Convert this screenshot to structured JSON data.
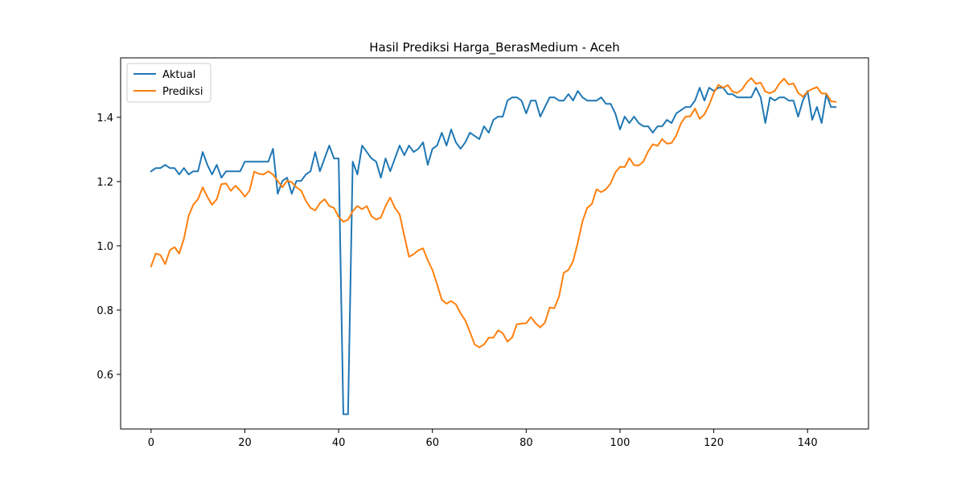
{
  "chart_data": {
    "type": "line",
    "title": "Hasil Prediksi Harga_BerasMedium - Aceh",
    "xlabel": "",
    "ylabel": "",
    "xlim": [
      -6.5,
      153
    ],
    "ylim": [
      0.43,
      1.585
    ],
    "xticks": [
      0,
      20,
      40,
      60,
      80,
      100,
      120,
      140
    ],
    "yticks": [
      0.6,
      0.8,
      1.0,
      1.2,
      1.4
    ],
    "ytick_labels": [
      "0.6",
      "0.8",
      "1.0",
      "1.2",
      "1.4"
    ],
    "legend_position": "upper-left",
    "grid": false,
    "series": [
      {
        "name": "Aktual",
        "color": "#1f77b4",
        "values": [
          1.232,
          1.242,
          1.242,
          1.252,
          1.242,
          1.242,
          1.222,
          1.242,
          1.222,
          1.232,
          1.232,
          1.292,
          1.252,
          1.222,
          1.252,
          1.212,
          1.232,
          1.232,
          1.232,
          1.232,
          1.262,
          1.262,
          1.262,
          1.262,
          1.262,
          1.262,
          1.302,
          1.162,
          1.202,
          1.212,
          1.162,
          1.202,
          1.202,
          1.222,
          1.232,
          1.292,
          1.232,
          1.272,
          1.312,
          1.272,
          1.272,
          0.476,
          0.476,
          1.262,
          1.222,
          1.312,
          1.292,
          1.272,
          1.262,
          1.212,
          1.272,
          1.232,
          1.272,
          1.312,
          1.282,
          1.312,
          1.292,
          1.302,
          1.322,
          1.252,
          1.302,
          1.312,
          1.352,
          1.312,
          1.362,
          1.322,
          1.302,
          1.322,
          1.352,
          1.342,
          1.332,
          1.372,
          1.352,
          1.392,
          1.402,
          1.402,
          1.452,
          1.462,
          1.462,
          1.452,
          1.412,
          1.452,
          1.452,
          1.402,
          1.432,
          1.462,
          1.462,
          1.452,
          1.452,
          1.472,
          1.452,
          1.482,
          1.462,
          1.452,
          1.452,
          1.452,
          1.462,
          1.442,
          1.442,
          1.412,
          1.362,
          1.402,
          1.382,
          1.402,
          1.382,
          1.372,
          1.372,
          1.352,
          1.372,
          1.372,
          1.392,
          1.382,
          1.412,
          1.422,
          1.432,
          1.432,
          1.452,
          1.492,
          1.452,
          1.492,
          1.482,
          1.492,
          1.492,
          1.472,
          1.472,
          1.462,
          1.462,
          1.462,
          1.462,
          1.492,
          1.462,
          1.382,
          1.462,
          1.452,
          1.462,
          1.462,
          1.452,
          1.452,
          1.402,
          1.452,
          1.482,
          1.392,
          1.432,
          1.382,
          1.472,
          1.432,
          1.432
        ]
      },
      {
        "name": "Prediksi",
        "color": "#ff7f0e",
        "values": [
          0.936,
          0.976,
          0.971,
          0.943,
          0.986,
          0.996,
          0.976,
          1.022,
          1.093,
          1.128,
          1.145,
          1.182,
          1.152,
          1.128,
          1.145,
          1.192,
          1.194,
          1.171,
          1.187,
          1.172,
          1.153,
          1.172,
          1.231,
          1.224,
          1.222,
          1.232,
          1.222,
          1.202,
          1.182,
          1.203,
          1.198,
          1.182,
          1.172,
          1.14,
          1.118,
          1.11,
          1.133,
          1.145,
          1.124,
          1.118,
          1.09,
          1.075,
          1.081,
          1.108,
          1.124,
          1.114,
          1.124,
          1.092,
          1.082,
          1.088,
          1.124,
          1.15,
          1.118,
          1.098,
          1.031,
          0.966,
          0.974,
          0.986,
          0.992,
          0.955,
          0.925,
          0.88,
          0.832,
          0.82,
          0.828,
          0.818,
          0.79,
          0.768,
          0.732,
          0.693,
          0.684,
          0.693,
          0.714,
          0.714,
          0.737,
          0.728,
          0.702,
          0.715,
          0.756,
          0.758,
          0.759,
          0.778,
          0.759,
          0.746,
          0.761,
          0.808,
          0.806,
          0.842,
          0.916,
          0.925,
          0.952,
          1.01,
          1.076,
          1.118,
          1.13,
          1.176,
          1.167,
          1.176,
          1.194,
          1.228,
          1.246,
          1.245,
          1.273,
          1.251,
          1.25,
          1.262,
          1.294,
          1.316,
          1.311,
          1.332,
          1.318,
          1.32,
          1.343,
          1.381,
          1.402,
          1.403,
          1.427,
          1.395,
          1.409,
          1.438,
          1.476,
          1.501,
          1.492,
          1.5,
          1.48,
          1.476,
          1.486,
          1.508,
          1.522,
          1.504,
          1.508,
          1.48,
          1.475,
          1.482,
          1.505,
          1.52,
          1.502,
          1.505,
          1.476,
          1.464,
          1.48,
          1.488,
          1.494,
          1.474,
          1.474,
          1.45,
          1.448
        ]
      }
    ]
  }
}
